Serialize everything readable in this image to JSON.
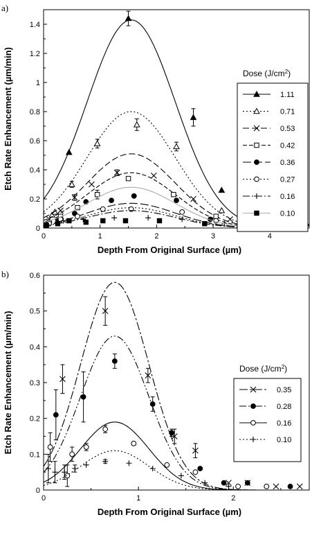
{
  "chart_data": [
    {
      "type": "scatter",
      "panel_label": "a)",
      "xlabel": "Depth From Original Surface (µm)",
      "ylabel": "Etch Rate Enhancement (µm/min)",
      "xlim": [
        0,
        4.7
      ],
      "ylim": [
        0,
        1.5
      ],
      "xticks": [
        0,
        1,
        2,
        3,
        4
      ],
      "yticks": [
        0,
        0.2,
        0.4,
        0.6,
        0.8,
        1,
        1.2,
        1.4
      ],
      "ytick_labels": [
        "0",
        "0.2",
        "0.4",
        "0.6",
        "0.8",
        "1",
        "1.2",
        "1.4"
      ],
      "legend": {
        "title": "Dose (J/cm",
        "title_sup": "2",
        "title_end": ")",
        "placement": "right"
      },
      "series": [
        {
          "name": "1.11",
          "marker": "triangle-filled",
          "dash": "",
          "color": "#000000",
          "curve": {
            "peak": 1.43,
            "center": 1.55,
            "sigma": 0.78
          },
          "points": [
            [
              0.45,
              0.52
            ],
            [
              1.5,
              1.44
            ],
            [
              2.65,
              0.76
            ],
            [
              3.15,
              0.26
            ],
            [
              3.5,
              0.13
            ],
            [
              4.65,
              0.03
            ]
          ],
          "errors": [
            0,
            0.05,
            0.06,
            0,
            0,
            0
          ]
        },
        {
          "name": "0.71",
          "marker": "triangle-open",
          "dash": "2,3",
          "color": "#000000",
          "curve": {
            "peak": 0.8,
            "center": 1.55,
            "sigma": 0.78
          },
          "points": [
            [
              0.15,
              0.09
            ],
            [
              0.2,
              0.11
            ],
            [
              0.5,
              0.3
            ],
            [
              0.95,
              0.58
            ],
            [
              1.65,
              0.71
            ],
            [
              2.35,
              0.56
            ],
            [
              3.15,
              0.12
            ],
            [
              3.55,
              0.05
            ]
          ],
          "errors": [
            0,
            0,
            0.02,
            0.03,
            0.04,
            0.03,
            0,
            0
          ]
        },
        {
          "name": "0.53",
          "marker": "cross",
          "dash": "9,4",
          "color": "#000000",
          "curve": {
            "peak": 0.51,
            "center": 1.55,
            "sigma": 0.78
          },
          "points": [
            [
              0.1,
              0.06
            ],
            [
              0.3,
              0.12
            ],
            [
              0.55,
              0.21
            ],
            [
              0.85,
              0.3
            ],
            [
              1.3,
              0.38
            ],
            [
              1.95,
              0.36
            ],
            [
              2.65,
              0.2
            ],
            [
              3.3,
              0.06
            ],
            [
              3.75,
              0.03
            ]
          ],
          "errors": [
            0,
            0,
            0.02,
            0,
            0.02,
            0,
            0,
            0,
            0
          ]
        },
        {
          "name": "0.42",
          "marker": "square-open",
          "dash": "6,3",
          "color": "#000000",
          "curve": {
            "peak": 0.38,
            "center": 1.55,
            "sigma": 0.78
          },
          "points": [
            [
              0.1,
              0.04
            ],
            [
              0.3,
              0.08
            ],
            [
              0.6,
              0.14
            ],
            [
              0.95,
              0.23
            ],
            [
              1.5,
              0.34
            ],
            [
              2.3,
              0.23
            ],
            [
              3.05,
              0.08
            ],
            [
              3.5,
              0.03
            ]
          ],
          "errors": [
            0,
            0,
            0,
            0.03,
            0,
            0,
            0,
            0
          ]
        },
        {
          "name": "0.36",
          "marker": "circle-filled",
          "dash": "12,4",
          "color": "#000000",
          "curve": {
            "peak": 0.17,
            "center": 1.55,
            "sigma": 0.78
          },
          "points": [
            [
              0.05,
              0.03
            ],
            [
              0.25,
              0.06
            ],
            [
              0.55,
              0.1
            ],
            [
              0.75,
              0.18
            ],
            [
              1.2,
              0.19
            ],
            [
              1.6,
              0.22
            ],
            [
              2.35,
              0.19
            ],
            [
              2.95,
              0.06
            ],
            [
              3.8,
              0.02
            ]
          ],
          "errors": [
            0,
            0,
            0,
            0,
            0,
            0,
            0,
            0,
            0
          ]
        },
        {
          "name": "0.27",
          "marker": "circle-open",
          "dash": "2,3",
          "color": "#000000",
          "curve": {
            "peak": 0.14,
            "center": 1.55,
            "sigma": 0.78
          },
          "points": [
            [
              0.1,
              0.03
            ],
            [
              0.3,
              0.06
            ],
            [
              0.6,
              0.08
            ],
            [
              1.05,
              0.13
            ],
            [
              1.55,
              0.13
            ],
            [
              2.45,
              0.11
            ],
            [
              3.05,
              0.05
            ],
            [
              3.55,
              0.02
            ]
          ],
          "errors": [
            0,
            0,
            0,
            0,
            0,
            0,
            0,
            0
          ]
        },
        {
          "name": "0.16",
          "marker": "plus",
          "dash": "10,3,2,3",
          "color": "#000000",
          "curve": {
            "peak": 0.12,
            "center": 1.55,
            "sigma": 0.78
          },
          "points": [
            [
              0.05,
              0.02
            ],
            [
              0.35,
              0.05
            ],
            [
              0.7,
              0.06
            ],
            [
              1.25,
              0.07
            ],
            [
              1.85,
              0.07
            ],
            [
              2.45,
              0.06
            ],
            [
              3.2,
              0.03
            ]
          ],
          "errors": [
            0,
            0,
            0,
            0,
            0,
            0,
            0
          ]
        },
        {
          "name": "0.10",
          "marker": "square-filled",
          "dash": "",
          "color": "#aaaaaa",
          "curve": {
            "peak": 0.28,
            "center": 1.55,
            "sigma": 0.78
          },
          "points": [
            [
              0.05,
              0.02
            ],
            [
              0.25,
              0.03
            ],
            [
              0.45,
              0.05
            ],
            [
              0.75,
              0.04
            ],
            [
              1.05,
              0.05
            ],
            [
              1.45,
              0.05
            ],
            [
              2.05,
              0.05
            ],
            [
              2.85,
              0.03
            ]
          ],
          "errors": [
            0,
            0,
            0,
            0,
            0,
            0,
            0,
            0
          ]
        }
      ]
    },
    {
      "type": "scatter",
      "panel_label": "b)",
      "xlabel": "Depth From Original Surface (µm)",
      "ylabel": "Etch Rate Enhancement (µm/min)",
      "xlim": [
        0,
        2.8
      ],
      "ylim": [
        0,
        0.6
      ],
      "xticks": [
        0,
        1,
        2
      ],
      "yticks": [
        0,
        0.1,
        0.2,
        0.3,
        0.4,
        0.5,
        0.6
      ],
      "ytick_labels": [
        "0",
        "0.1",
        "0.2",
        "0.3",
        "0.4",
        "0.5",
        "0.6"
      ],
      "legend": {
        "title": "Dose (J/cm",
        "title_sup": "2",
        "title_end": ")",
        "placement": "right"
      },
      "series": [
        {
          "name": "0.35",
          "marker": "cross",
          "dash": "12,3,3,3",
          "color": "#000000",
          "curve": {
            "peak": 0.58,
            "center": 0.75,
            "sigma": 0.36
          },
          "points": [
            [
              0.2,
              0.31
            ],
            [
              0.65,
              0.5
            ],
            [
              1.1,
              0.32
            ],
            [
              1.38,
              0.15
            ],
            [
              1.6,
              0.11
            ],
            [
              1.95,
              0.02
            ],
            [
              2.15,
              0.02
            ],
            [
              2.45,
              0.01
            ],
            [
              2.7,
              0.01
            ]
          ],
          "errors": [
            0.04,
            0.04,
            0.02,
            0.02,
            0.02,
            0,
            0,
            0,
            0
          ]
        },
        {
          "name": "0.28",
          "marker": "circle-filled",
          "dash": "10,3,2,3,2,3",
          "color": "#000000",
          "curve": {
            "peak": 0.43,
            "center": 0.75,
            "sigma": 0.36
          },
          "points": [
            [
              0.13,
              0.21
            ],
            [
              0.42,
              0.26
            ],
            [
              0.75,
              0.36
            ],
            [
              1.15,
              0.24
            ],
            [
              1.35,
              0.16
            ],
            [
              1.65,
              0.06
            ],
            [
              1.9,
              0.02
            ],
            [
              2.15,
              0.02
            ],
            [
              2.6,
              0.01
            ]
          ],
          "errors": [
            0.07,
            0.07,
            0.02,
            0.02,
            0.01,
            0,
            0,
            0,
            0
          ]
        },
        {
          "name": "0.16",
          "marker": "circle-open",
          "dash": "",
          "color": "#000000",
          "curve": {
            "peak": 0.19,
            "center": 0.75,
            "sigma": 0.36
          },
          "points": [
            [
              0.07,
              0.12
            ],
            [
              0.25,
              0.04
            ],
            [
              0.3,
              0.1
            ],
            [
              0.45,
              0.12
            ],
            [
              0.65,
              0.17
            ],
            [
              0.95,
              0.13
            ],
            [
              1.3,
              0.07
            ],
            [
              1.6,
              0.05
            ],
            [
              2.05,
              0.01
            ],
            [
              2.35,
              0.01
            ]
          ],
          "errors": [
            0.04,
            0.03,
            0.02,
            0.01,
            0.01,
            0.005,
            0,
            0,
            0,
            0
          ]
        },
        {
          "name": "0.10",
          "marker": "plus",
          "dash": "2,3",
          "color": "#000000",
          "curve": {
            "peak": 0.11,
            "center": 0.75,
            "sigma": 0.36
          },
          "points": [
            [
              0.05,
              0.06
            ],
            [
              0.12,
              0.05
            ],
            [
              0.22,
              0.05
            ],
            [
              0.33,
              0.06
            ],
            [
              0.45,
              0.07
            ],
            [
              0.65,
              0.08
            ],
            [
              0.9,
              0.075
            ],
            [
              1.15,
              0.06
            ],
            [
              1.45,
              0.04
            ],
            [
              1.7,
              0.02
            ],
            [
              1.95,
              0.01
            ]
          ],
          "errors": [
            0.04,
            0.03,
            0.02,
            0.01,
            0,
            0.005,
            0,
            0,
            0,
            0,
            0
          ]
        }
      ]
    }
  ]
}
